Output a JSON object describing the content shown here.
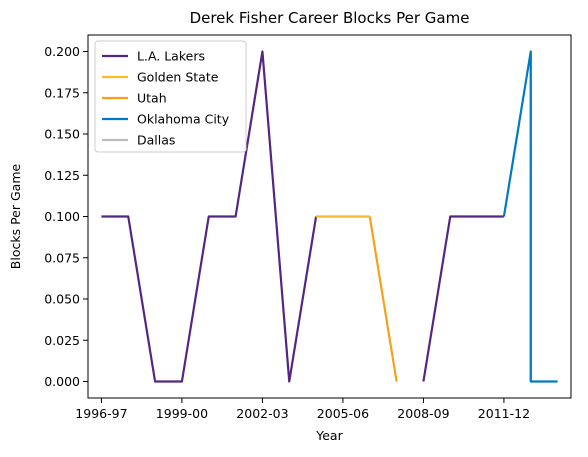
{
  "chart_data": {
    "type": "line",
    "title": "Derek Fisher Career Blocks Per Game",
    "xlabel": "Year",
    "ylabel": "Blocks Per Game",
    "x_ticks": [
      "1996-97",
      "1999-00",
      "2002-03",
      "2005-06",
      "2008-09",
      "2011-12"
    ],
    "y_ticks": [
      "0.000",
      "0.025",
      "0.050",
      "0.075",
      "0.100",
      "0.125",
      "0.150",
      "0.175",
      "0.200"
    ],
    "ylim": [
      -0.01,
      0.21
    ],
    "xlim": [
      -0.5,
      17.5
    ],
    "grid": false,
    "legend_position": "top-left",
    "series": [
      {
        "name": "L.A. Lakers",
        "color": "#552583",
        "x": [
          0,
          1,
          2,
          3,
          4,
          5,
          6,
          7,
          8,
          12,
          13,
          14,
          15
        ],
        "y": [
          0.1,
          0.1,
          0.0,
          0.0,
          0.1,
          0.1,
          0.2,
          0.0,
          0.1,
          0.0,
          0.1,
          0.1,
          0.1
        ],
        "segments": [
          [
            0,
            9
          ],
          [
            9,
            13
          ]
        ]
      },
      {
        "name": "Golden State",
        "color": "#FDB927",
        "x": [
          8,
          9,
          10
        ],
        "y": [
          0.1,
          0.1,
          0.1
        ]
      },
      {
        "name": "Utah",
        "color": "#F9A01B",
        "x": [
          10,
          11
        ],
        "y": [
          0.1,
          0.0
        ]
      },
      {
        "name": "Oklahoma City",
        "color": "#007AC1",
        "x": [
          15,
          16,
          16,
          17
        ],
        "y": [
          0.1,
          0.2,
          0.0,
          0.0
        ]
      },
      {
        "name": "Dallas",
        "color": "#BBBBBB",
        "x": [
          16,
          16
        ],
        "y": [
          0.2,
          0.0
        ]
      }
    ]
  }
}
